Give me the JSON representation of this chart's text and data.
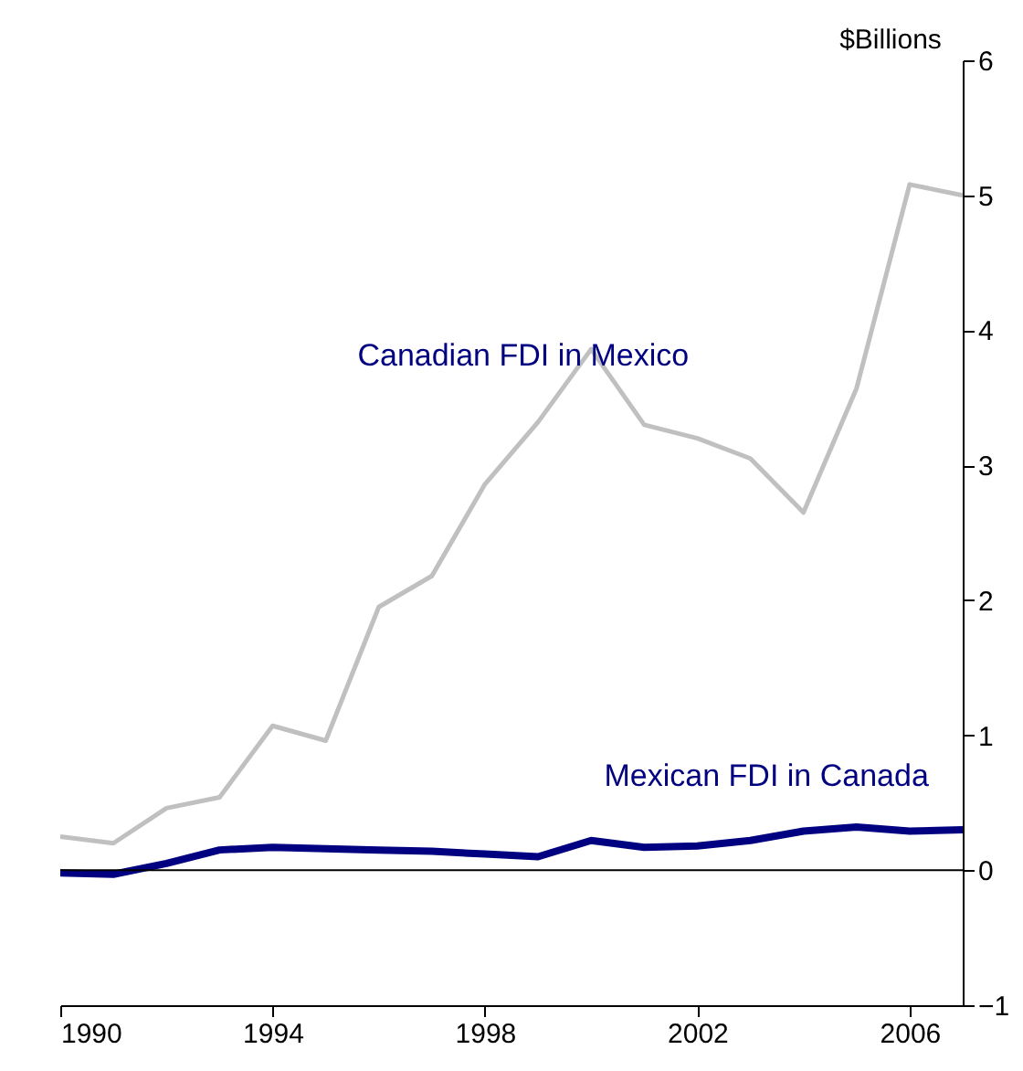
{
  "chart_data": {
    "type": "line",
    "ylabel": "$Billions",
    "x": [
      1990,
      1991,
      1992,
      1993,
      1994,
      1995,
      1996,
      1997,
      1998,
      1999,
      2000,
      2001,
      2002,
      2003,
      2004,
      2005,
      2006,
      2007
    ],
    "series": [
      {
        "name": "Canadian FDI in Mexico",
        "color": "#c0c0c0",
        "values": [
          0.25,
          0.2,
          0.46,
          0.54,
          1.07,
          0.96,
          1.95,
          2.18,
          2.86,
          3.32,
          3.86,
          3.3,
          3.2,
          3.05,
          2.65,
          3.57,
          5.08,
          5.0
        ]
      },
      {
        "name": "Mexican FDI in Canada",
        "color": "#000080",
        "values": [
          -0.02,
          -0.03,
          0.05,
          0.15,
          0.17,
          0.16,
          0.15,
          0.14,
          0.12,
          0.1,
          0.22,
          0.17,
          0.18,
          0.22,
          0.29,
          0.32,
          0.29,
          0.3
        ]
      }
    ],
    "xlim": [
      1990,
      2007
    ],
    "xticks": [
      1990,
      1994,
      1998,
      2002,
      2006
    ],
    "ylim": [
      -1,
      6
    ],
    "yticks": [
      -1,
      0,
      1,
      2,
      3,
      4,
      5,
      6
    ],
    "ref_lines": [
      {
        "axis": "y",
        "value": 0,
        "color": "#000000"
      }
    ],
    "grid": false,
    "marker": "none",
    "line_style": "solid"
  }
}
